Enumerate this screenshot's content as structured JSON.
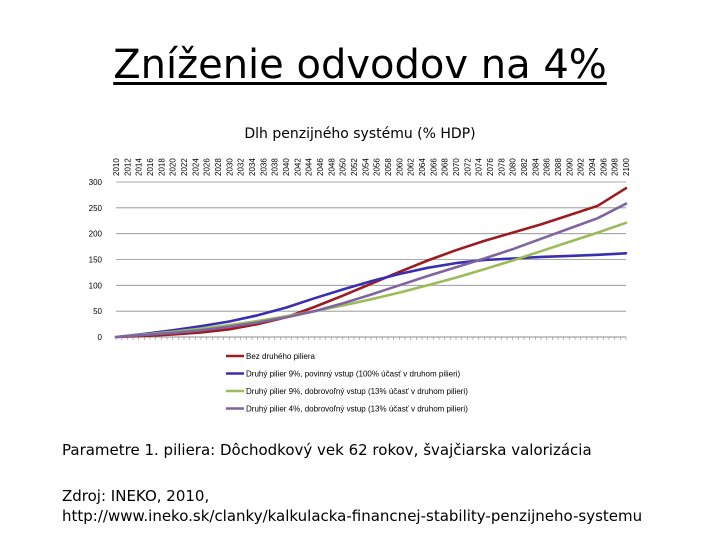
{
  "slide": {
    "title": "Zníženie odvodov na 4%",
    "parameters_text": "Parametre 1. piliera: Dôchodkový vek 62 rokov, švajčiarska valorizácia",
    "source_line1": "Zdroj: INEKO, 2010,",
    "source_line2": "http://www.ineko.sk/clanky/kalkulacka-financnej-stability-penzijneho-systemu"
  },
  "chart_data": {
    "type": "line",
    "title": "Dlh penzijného systému (% HDP)",
    "xlabel": "",
    "ylabel": "",
    "x_ticks": [
      2010,
      2012,
      2014,
      2016,
      2018,
      2020,
      2022,
      2024,
      2026,
      2028,
      2030,
      2032,
      2034,
      2036,
      2038,
      2040,
      2042,
      2044,
      2046,
      2048,
      2050,
      2052,
      2054,
      2056,
      2058,
      2060,
      2062,
      2064,
      2066,
      2068,
      2070,
      2072,
      2074,
      2076,
      2078,
      2080,
      2082,
      2084,
      2086,
      2088,
      2090,
      2092,
      2094,
      2096,
      2098,
      2100
    ],
    "x_tick_position": "top",
    "xlim": [
      2010,
      2100
    ],
    "y_ticks": [
      0,
      50,
      100,
      150,
      200,
      250,
      300
    ],
    "ylim": [
      0,
      300
    ],
    "grid": "horizontal",
    "legend_position": "bottom",
    "series": [
      {
        "name": "Bez druhého piliera",
        "color": "#9b1b1f",
        "x": [
          2010,
          2015,
          2020,
          2025,
          2030,
          2035,
          2040,
          2045,
          2050,
          2055,
          2060,
          2065,
          2070,
          2075,
          2080,
          2085,
          2090,
          2095,
          2100
        ],
        "y": [
          0,
          2,
          5,
          9,
          15,
          25,
          38,
          58,
          80,
          103,
          126,
          148,
          168,
          186,
          202,
          218,
          236,
          254,
          288
        ]
      },
      {
        "name": "Druhý pilier 9%, povinný vstup (100% účasť v druhom pilieri)",
        "color": "#3a2fb0",
        "x": [
          2010,
          2015,
          2020,
          2025,
          2030,
          2035,
          2040,
          2045,
          2050,
          2055,
          2060,
          2065,
          2070,
          2075,
          2080,
          2085,
          2090,
          2095,
          2100
        ],
        "y": [
          0,
          6,
          13,
          21,
          30,
          42,
          57,
          75,
          92,
          108,
          122,
          134,
          143,
          149,
          152,
          155,
          157,
          159,
          162
        ]
      },
      {
        "name": "Druhý pilier 9%, dobrovoľný vstup (13% účasť v druhom pilieri)",
        "color": "#9cbb59",
        "x": [
          2010,
          2015,
          2020,
          2025,
          2030,
          2035,
          2040,
          2045,
          2050,
          2055,
          2060,
          2065,
          2070,
          2075,
          2080,
          2085,
          2090,
          2095,
          2100
        ],
        "y": [
          0,
          5,
          10,
          16,
          23,
          31,
          40,
          50,
          61,
          73,
          86,
          100,
          115,
          131,
          148,
          166,
          184,
          202,
          221
        ]
      },
      {
        "name": "Druhý pilier 4%, dobrovoľný vstup (13% účasť v druhom pilieri)",
        "color": "#8064a2",
        "x": [
          2010,
          2015,
          2020,
          2025,
          2030,
          2035,
          2040,
          2045,
          2050,
          2055,
          2060,
          2065,
          2070,
          2075,
          2080,
          2085,
          2090,
          2095,
          2100
        ],
        "y": [
          0,
          4,
          8,
          13,
          20,
          28,
          38,
          50,
          65,
          82,
          100,
          118,
          135,
          152,
          170,
          190,
          210,
          230,
          258
        ]
      }
    ]
  }
}
